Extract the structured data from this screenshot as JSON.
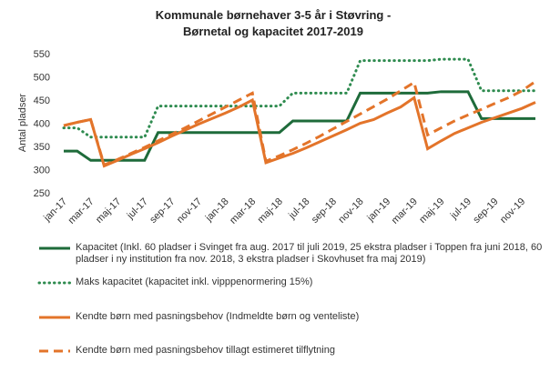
{
  "chart_data": {
    "type": "line",
    "title": "Kommunale børnehaver 3-5 år i Støvring - Børnetal og kapacitet 2017-2019",
    "y_label": "Antal pladser",
    "categories": [
      "jan-17",
      null,
      "mar-17",
      null,
      "maj-17",
      null,
      "jul-17",
      null,
      "sep-17",
      null,
      "nov-17",
      null,
      "jan-18",
      null,
      "mar-18",
      null,
      "maj-18",
      null,
      "jul-18",
      null,
      "sep-18",
      null,
      "nov-18",
      null,
      "jan-19",
      null,
      "mar-19",
      null,
      "maj-19",
      null,
      "jul-19",
      null,
      "sep-19",
      null,
      "nov-19",
      null
    ],
    "ylim": [
      250,
      550
    ],
    "yticks": [
      250,
      300,
      350,
      400,
      450,
      500,
      550
    ],
    "grid": false,
    "legend": "bottom",
    "series": [
      {
        "name": "Kapacitet (Inkl. 60 pladser i Svinget fra aug. 2017 til juli 2019, 25 ekstra pladser i Toppen fra juni 2018, 60 pladser i ny institution fra nov. 2018, 3 ekstra pladser i Skovhuset fra maj 2019)",
        "color": "#1e6b3a",
        "style": "solid",
        "values": [
          340,
          340,
          320,
          320,
          320,
          320,
          320,
          380,
          380,
          380,
          380,
          380,
          380,
          380,
          380,
          380,
          380,
          405,
          405,
          405,
          405,
          405,
          465,
          465,
          465,
          465,
          465,
          465,
          468,
          468,
          468,
          410,
          410,
          410,
          410,
          410
        ]
      },
      {
        "name": "Maks kapacitet (kapacitet inkl. vipppenormering 15%)",
        "color": "#2e8b4f",
        "style": "dotted",
        "values": [
          390,
          390,
          370,
          370,
          370,
          370,
          370,
          437,
          437,
          437,
          437,
          437,
          437,
          437,
          437,
          437,
          437,
          465,
          465,
          465,
          465,
          465,
          535,
          535,
          535,
          535,
          535,
          535,
          538,
          538,
          538,
          470,
          470,
          470,
          470,
          470
        ]
      },
      {
        "name": "Kendte børn med pasningsbehov (Indmeldte børn og venteliste)",
        "color": "#e3742a",
        "style": "solid",
        "values": [
          395,
          402,
          408,
          308,
          320,
          333,
          345,
          358,
          372,
          385,
          398,
          410,
          422,
          435,
          450,
          315,
          325,
          335,
          347,
          360,
          373,
          386,
          400,
          408,
          422,
          435,
          455,
          345,
          362,
          378,
          390,
          402,
          412,
          422,
          432,
          445
        ]
      },
      {
        "name": "Kendte børn med pasningsbehov tillagt estimeret tilflytning",
        "color": "#e3742a",
        "style": "dashed",
        "values": [
          395,
          402,
          408,
          310,
          322,
          335,
          348,
          362,
          376,
          390,
          405,
          420,
          435,
          450,
          465,
          318,
          330,
          343,
          357,
          372,
          388,
          404,
          420,
          436,
          452,
          470,
          488,
          375,
          390,
          405,
          418,
          430,
          443,
          455,
          470,
          490
        ]
      }
    ]
  }
}
